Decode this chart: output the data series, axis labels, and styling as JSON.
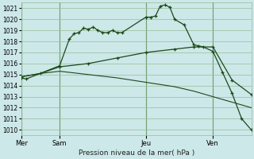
{
  "bg_color": "#cde8e8",
  "grid_color": "#99bb99",
  "line_color": "#1a4a1a",
  "day_line_color": "#226622",
  "xlabel": "Pression niveau de la mer( hPa )",
  "ylim": [
    1009.5,
    1021.5
  ],
  "yticks": [
    1010,
    1011,
    1012,
    1013,
    1014,
    1015,
    1016,
    1017,
    1018,
    1019,
    1020,
    1021
  ],
  "day_labels": [
    "Mer",
    "Sam",
    "Jeu",
    "Ven"
  ],
  "day_positions": [
    0,
    4,
    13,
    20
  ],
  "xlim": [
    0,
    24
  ],
  "line1_x": [
    0,
    0.5,
    4,
    5,
    5.5,
    6,
    6.5,
    7,
    7.5,
    8,
    8.5,
    9,
    9.5,
    10,
    10.5,
    13,
    13.5,
    14,
    14.5,
    15,
    15.5,
    16,
    17,
    18,
    18.5,
    19,
    20,
    21,
    22,
    23,
    24
  ],
  "line1_y": [
    1014.7,
    1014.6,
    1015.8,
    1018.2,
    1018.7,
    1018.8,
    1019.2,
    1019.1,
    1019.3,
    1019.0,
    1018.8,
    1018.8,
    1019.0,
    1018.8,
    1018.8,
    1020.2,
    1020.2,
    1020.3,
    1021.2,
    1021.3,
    1021.1,
    1020.0,
    1019.5,
    1017.7,
    1017.6,
    1017.5,
    1017.1,
    1015.2,
    1013.3,
    1011.0,
    1010.0
  ],
  "line2_x": [
    0,
    2,
    4,
    7,
    10,
    13,
    16,
    18,
    20,
    22,
    24
  ],
  "line2_y": [
    1014.8,
    1015.1,
    1015.7,
    1016.0,
    1016.5,
    1017.0,
    1017.3,
    1017.5,
    1017.5,
    1014.5,
    1013.2
  ],
  "line3_x": [
    0,
    2,
    4,
    7,
    10,
    13,
    16,
    18,
    20,
    22,
    24
  ],
  "line3_y": [
    1014.8,
    1015.1,
    1015.3,
    1015.0,
    1014.7,
    1014.3,
    1013.9,
    1013.5,
    1013.0,
    1012.5,
    1012.0
  ]
}
